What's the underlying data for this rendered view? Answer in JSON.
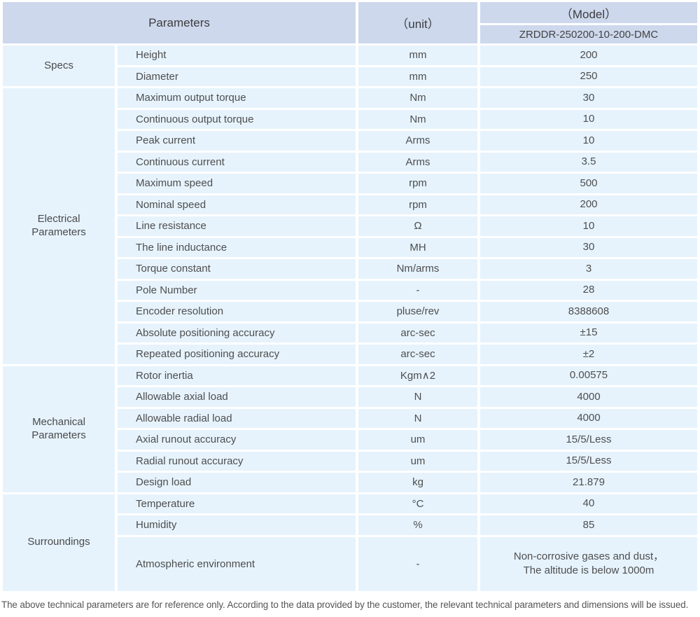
{
  "table": {
    "header": {
      "parameters_label": "Parameters",
      "unit_label": "（unit）",
      "model_label": "（Model）",
      "model_value": "ZRDDR-250200-10-200-DMC"
    },
    "sections": [
      {
        "category": "Specs",
        "rows": [
          {
            "name": "Height",
            "unit": "mm",
            "value": "200"
          },
          {
            "name": "Diameter",
            "unit": "mm",
            "value": "250"
          }
        ]
      },
      {
        "category": "Electrical Parameters",
        "rows": [
          {
            "name": "Maximum output torque",
            "unit": "Nm",
            "value": "30"
          },
          {
            "name": "Continuous output torque",
            "unit": "Nm",
            "value": "10"
          },
          {
            "name": "Peak current",
            "unit": "Arms",
            "value": "10"
          },
          {
            "name": "Continuous current",
            "unit": "Arms",
            "value": "3.5"
          },
          {
            "name": "Maximum speed",
            "unit": "rpm",
            "value": "500"
          },
          {
            "name": "Nominal speed",
            "unit": "rpm",
            "value": "200"
          },
          {
            "name": "Line resistance",
            "unit": "Ω",
            "value": "10"
          },
          {
            "name": "The line inductance",
            "unit": "MH",
            "value": "30"
          },
          {
            "name": "Torque constant",
            "unit": "Nm/arms",
            "value": "3"
          },
          {
            "name": "Pole Number",
            "unit": "-",
            "value": "28"
          },
          {
            "name": "Encoder resolution",
            "unit": "pluse/rev",
            "value": "8388608"
          },
          {
            "name": "Absolute positioning accuracy",
            "unit": "arc-sec",
            "value": "±15"
          },
          {
            "name": "Repeated positioning accuracy",
            "unit": "arc-sec",
            "value": "±2"
          }
        ]
      },
      {
        "category": "Mechanical Parameters",
        "rows": [
          {
            "name": "Rotor inertia",
            "unit": "Kgm∧2",
            "value": "0.00575"
          },
          {
            "name": "Allowable axial load",
            "unit": "N",
            "value": "4000"
          },
          {
            "name": "Allowable radial load",
            "unit": "N",
            "value": "4000"
          },
          {
            "name": "Axial runout accuracy",
            "unit": "um",
            "value": "15/5/Less"
          },
          {
            "name": "Radial runout accuracy",
            "unit": "um",
            "value": "15/5/Less"
          },
          {
            "name": "Design load",
            "unit": "kg",
            "value": "21.879"
          }
        ]
      },
      {
        "category": "Surroundings",
        "rows": [
          {
            "name": "Temperature",
            "unit": "°C",
            "value": "40"
          },
          {
            "name": "Humidity",
            "unit": "%",
            "value": "85"
          },
          {
            "name": "Atmospheric environment",
            "unit": "-",
            "value": "Non-corrosive gases and dust，\nThe altitude is below 1000m",
            "tall": true
          }
        ]
      }
    ]
  },
  "footer": {
    "note": "The above technical parameters are for reference only. According to the data provided by the customer, the relevant technical parameters and dimensions will be issued."
  },
  "colors": {
    "header_bg": "#cdd8ec",
    "body_bg": "#e6f3fc",
    "text": "#4e4e50"
  }
}
